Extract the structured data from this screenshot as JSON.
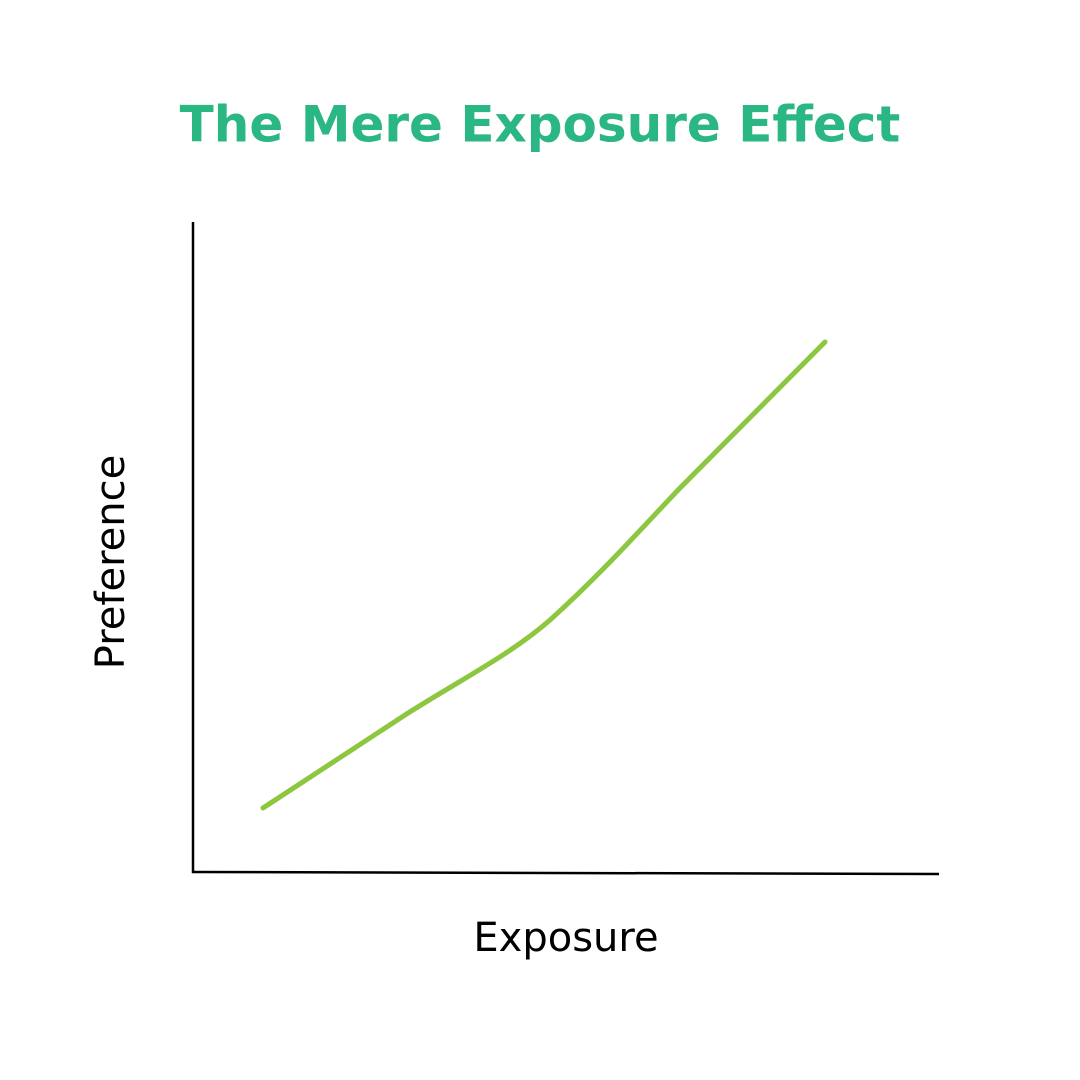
{
  "title": "The Mere Exposure Effect",
  "x_axis_label": "Exposure",
  "y_axis_label": "Preference"
}
